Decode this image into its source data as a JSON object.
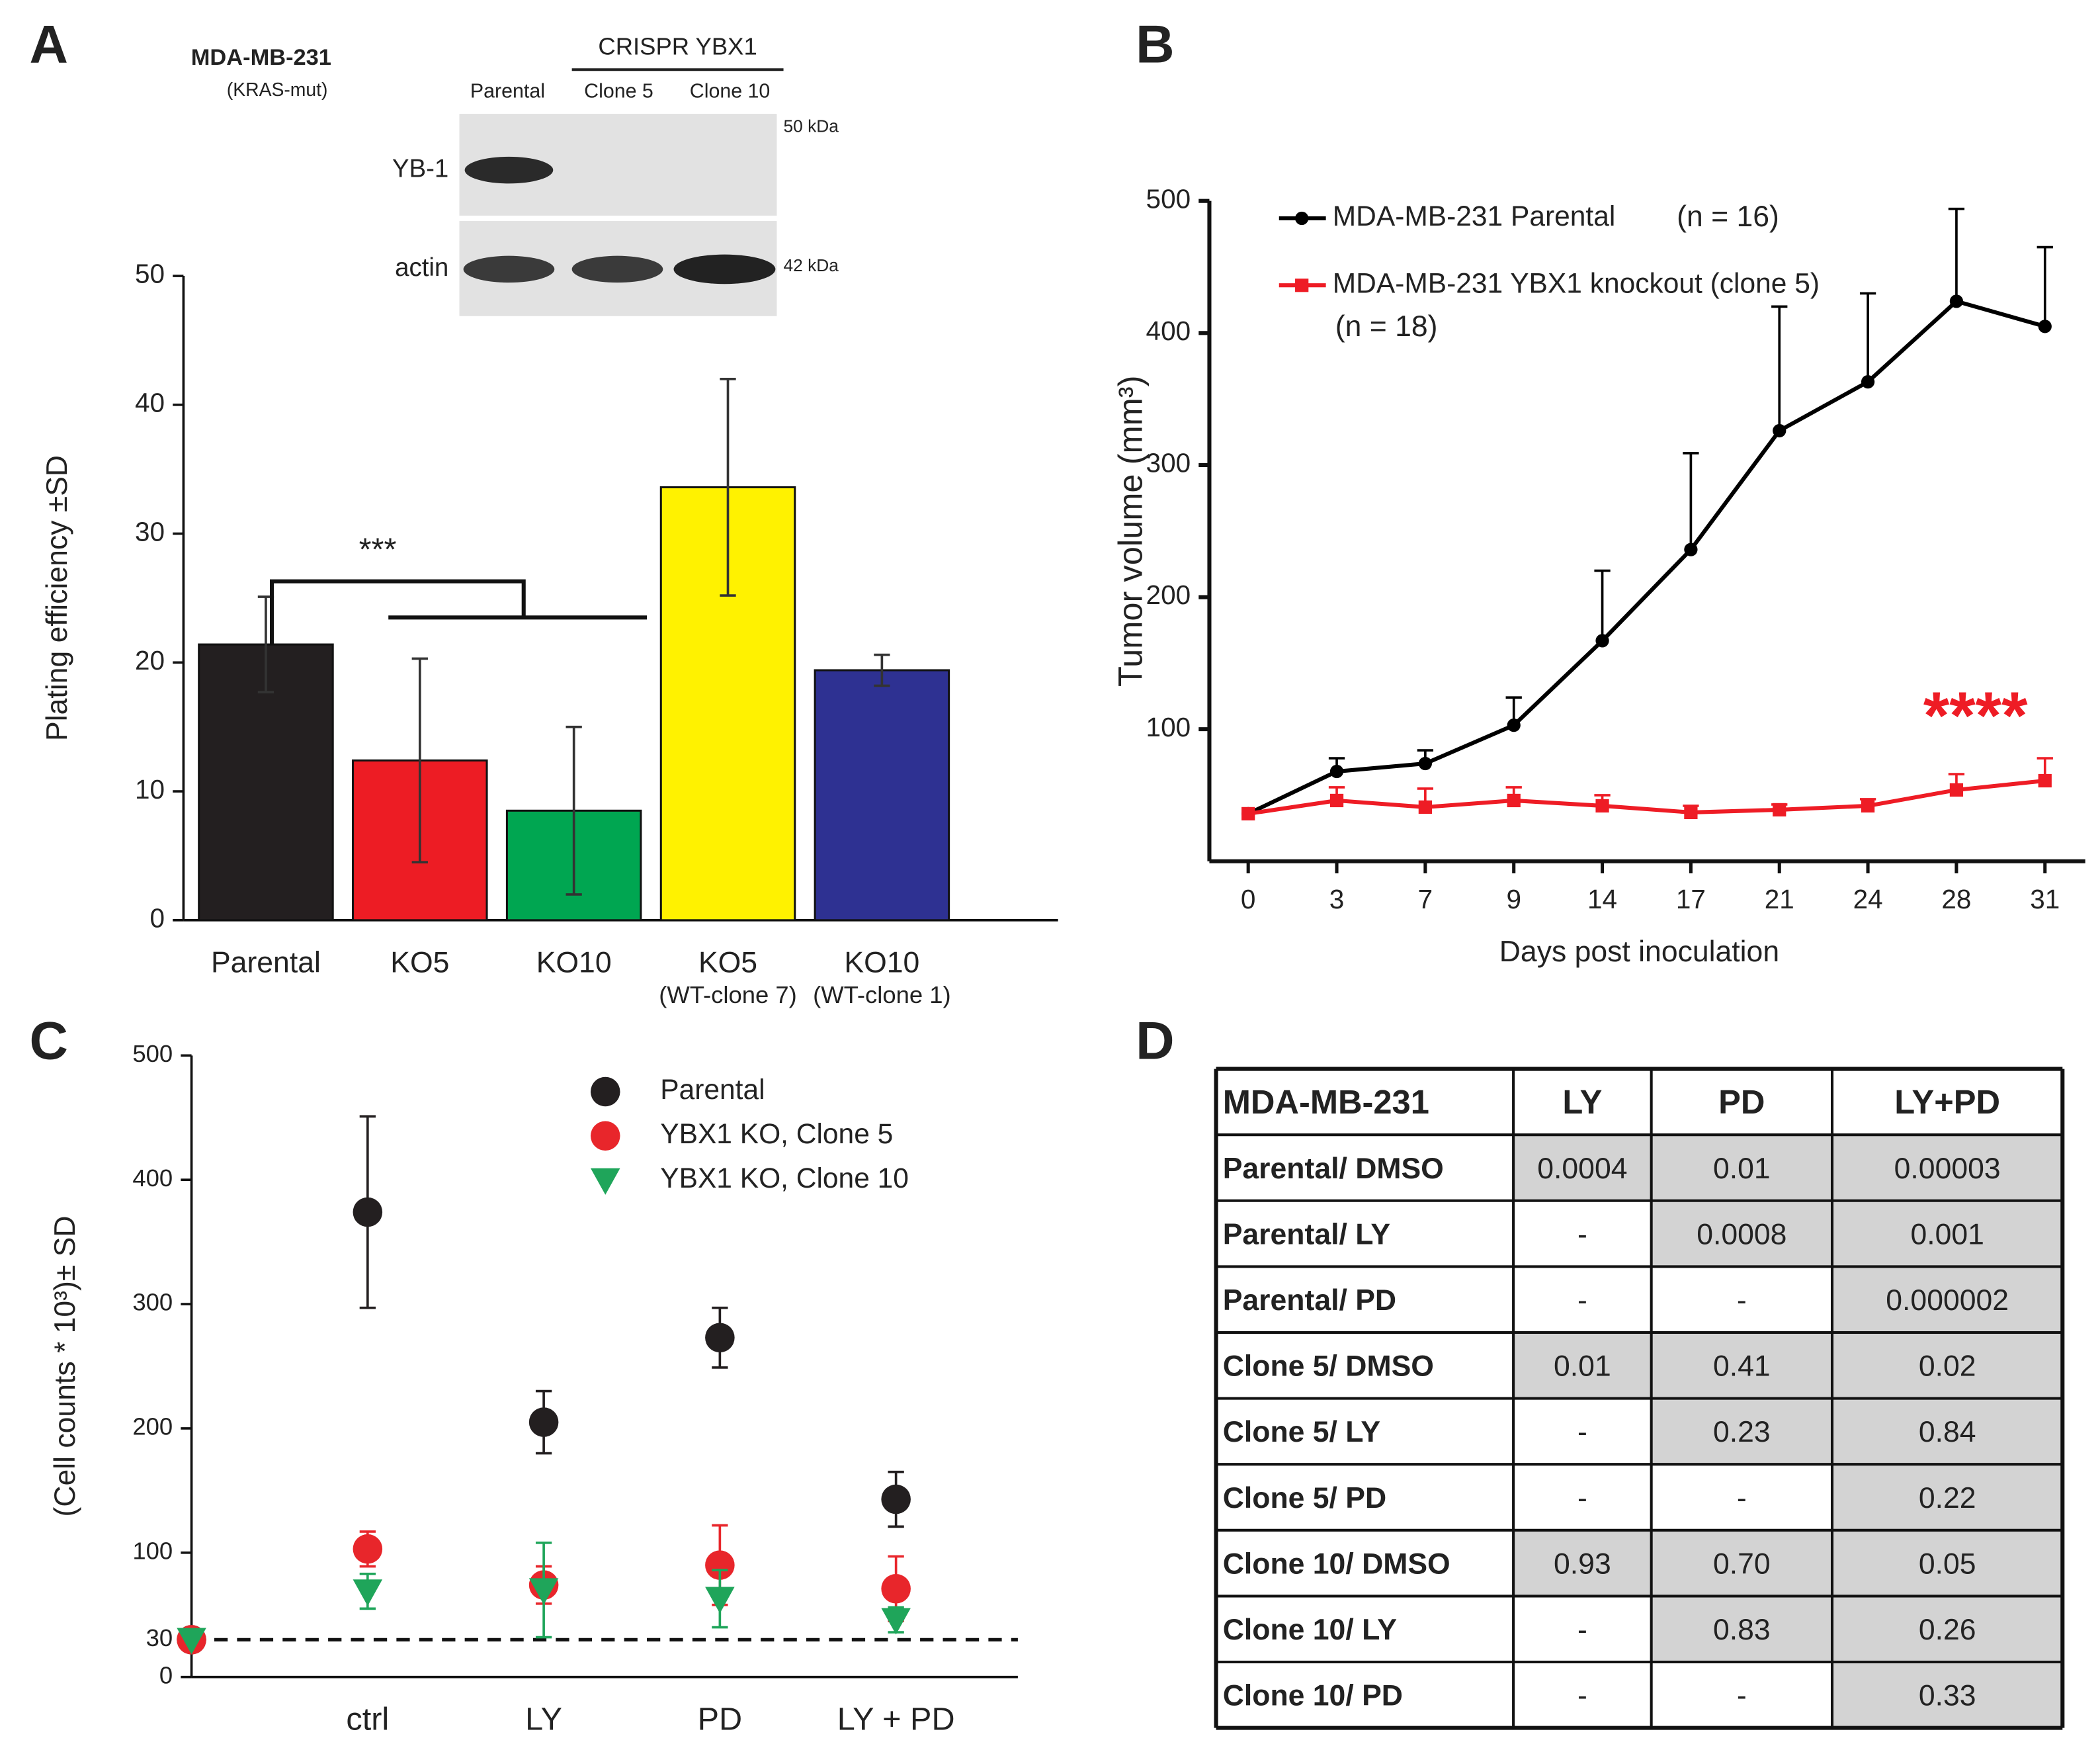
{
  "panels": [
    "A",
    "B",
    "C",
    "D"
  ],
  "blot": {
    "cell_line": "MDA-MB-231",
    "genotype": "(KRAS-mut)",
    "group": "CRISPR YBX1",
    "lanes": [
      "Parental",
      "Clone 5",
      "Clone 10"
    ],
    "rows": [
      {
        "protein": "YB-1",
        "size": "50 kDa"
      },
      {
        "protein": "actin",
        "size": "42 kDa"
      }
    ]
  },
  "chart_data": [
    {
      "type": "bar",
      "ylabel": "Plating efficiency ±SD",
      "categories": [
        "Parental",
        "KO5",
        "KO10",
        "KO5",
        "KO10"
      ],
      "category_notes": [
        null,
        null,
        null,
        "(WT-clone 7)",
        "(WT-clone 1)"
      ],
      "values": [
        21.4,
        12.4,
        8.5,
        33.6,
        19.4
      ],
      "errors": [
        3.7,
        7.9,
        6.5,
        8.4,
        1.2
      ],
      "colors": [
        "#231f20",
        "#ed1c24",
        "#00a651",
        "#fff200",
        "#2e3192"
      ],
      "ylim": [
        0,
        50
      ],
      "yticks": [
        0,
        10,
        20,
        30,
        40,
        50
      ],
      "annotation": "***"
    },
    {
      "type": "line",
      "ylabel": "Tumor volume (mm³)",
      "xlabel": "Days post inoculation",
      "categories": [
        "0",
        "3",
        "7",
        "9",
        "14",
        "17",
        "21",
        "24",
        "28",
        "31"
      ],
      "ylim": [
        0,
        500
      ],
      "yticks": [
        100,
        200,
        300,
        400,
        500
      ],
      "error_direction": "upper",
      "annotation": "****",
      "annotation_color": "#ee1c25",
      "series": [
        {
          "name": "MDA-MB-231 Parental",
          "n_label": "(n = 16)",
          "color": "#000000",
          "marker": "circle",
          "values": [
            36,
            68,
            74,
            103,
            167,
            236,
            326,
            363,
            424,
            405
          ],
          "errors": [
            null,
            10,
            10,
            21,
            53,
            73,
            94,
            67,
            70,
            60
          ]
        },
        {
          "name": "MDA-MB-231 YBX1 knockout (clone 5)",
          "n_label": "(n = 18)",
          "color": "#ee1c25",
          "marker": "square",
          "values": [
            36,
            46,
            41,
            46,
            42,
            37,
            39,
            42,
            54,
            61
          ],
          "errors": [
            null,
            10,
            14,
            10,
            8,
            5,
            4,
            5,
            12,
            17
          ]
        }
      ]
    },
    {
      "type": "scatter",
      "ylabel": "(Cell counts * 10³)± SD",
      "categories": [
        null,
        "ctrl",
        "LY",
        "PD",
        "LY + PD"
      ],
      "ylim": [
        0,
        500
      ],
      "yticks": [
        0,
        30,
        100,
        200,
        300,
        400,
        500
      ],
      "reference_line": 30,
      "series": [
        {
          "name": "Parental",
          "color": "#231f20",
          "marker": "circle",
          "values": [
            30,
            374,
            205,
            273,
            143
          ],
          "errors": [
            null,
            77,
            25,
            24,
            22
          ]
        },
        {
          "name": "YBX1 KO, Clone 5",
          "color": "#e8262b",
          "marker": "circle",
          "values": [
            30,
            103,
            74,
            90,
            71
          ],
          "errors": [
            null,
            14,
            15,
            32,
            26
          ]
        },
        {
          "name": "YBX1 KO, Clone 10",
          "color": "#1fa55a",
          "marker": "triangle",
          "values": [
            30,
            69,
            70,
            63,
            46
          ],
          "errors": [
            null,
            14,
            38,
            23,
            10
          ]
        }
      ]
    }
  ],
  "table": {
    "header": [
      "MDA-MB-231",
      "LY",
      "PD",
      "LY+PD"
    ],
    "rows": [
      [
        "Parental/ DMSO",
        "0.0004",
        "0.01",
        "0.00003"
      ],
      [
        "Parental/ LY",
        "-",
        "0.0008",
        "0.001"
      ],
      [
        "Parental/ PD",
        "-",
        "-",
        "0.000002"
      ],
      [
        "Clone 5/ DMSO",
        "0.01",
        "0.41",
        "0.02"
      ],
      [
        "Clone 5/ LY",
        "-",
        "0.23",
        "0.84"
      ],
      [
        "Clone 5/ PD",
        "-",
        "-",
        "0.22"
      ],
      [
        "Clone 10/ DMSO",
        "0.93",
        "0.70",
        "0.05"
      ],
      [
        "Clone 10/ LY",
        "-",
        "0.83",
        "0.26"
      ],
      [
        "Clone 10/ PD",
        "-",
        "-",
        "0.33"
      ]
    ],
    "shaded": [
      [
        true,
        true,
        true
      ],
      [
        false,
        true,
        true
      ],
      [
        false,
        false,
        true
      ],
      [
        true,
        true,
        true
      ],
      [
        false,
        true,
        true
      ],
      [
        false,
        false,
        true
      ],
      [
        true,
        true,
        true
      ],
      [
        false,
        true,
        true
      ],
      [
        false,
        false,
        true
      ]
    ]
  }
}
